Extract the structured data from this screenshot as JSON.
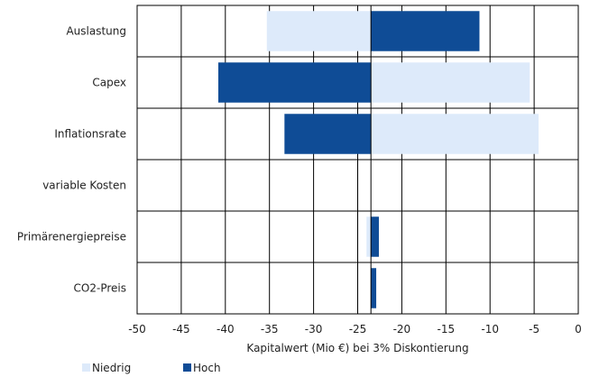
{
  "chart_data": {
    "type": "bar",
    "orientation": "horizontal",
    "subtype": "tornado",
    "base_value": -23.5,
    "categories": [
      "Auslastung",
      "Capex",
      "Inflationsrate",
      "variable Kosten",
      "Primärenergiepreise",
      "CO2-Preis"
    ],
    "series": [
      {
        "name": "Niedrig",
        "color": "#ddeafa",
        "values": [
          -35.3,
          -5.5,
          -4.5,
          -23.5,
          -24.0,
          -23.4
        ]
      },
      {
        "name": "Hoch",
        "color": "#0f4c96",
        "values": [
          -11.2,
          -40.8,
          -33.3,
          -23.5,
          -22.6,
          -22.9
        ]
      }
    ],
    "xlabel": "Kapitalwert (Mio €) bei 3% Diskontierung",
    "ylabel": "",
    "xlim": [
      -50,
      0
    ],
    "xticks": [
      -50,
      -45,
      -40,
      -35,
      -30,
      -25,
      -20,
      -15,
      -10,
      -5,
      0
    ],
    "grid": true,
    "legend_position": "bottom-left"
  }
}
